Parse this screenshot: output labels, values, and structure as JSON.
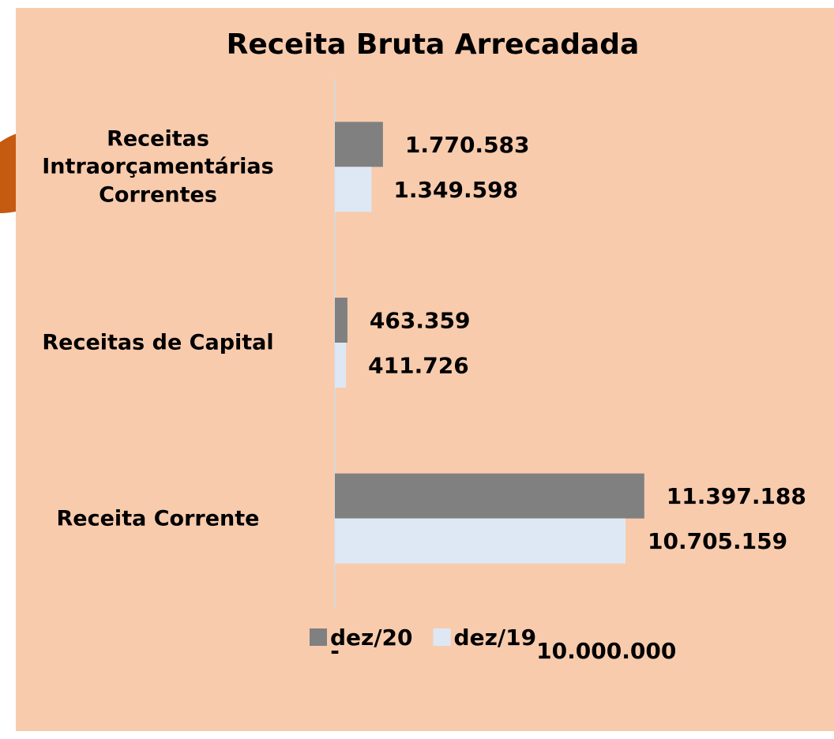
{
  "chart_data": {
    "type": "bar",
    "orientation": "horizontal",
    "title": "Receita Bruta Arrecadada",
    "categories": [
      "Receitas Intraorçamentárias Correntes",
      "Receitas de Capital",
      "Receita Corrente"
    ],
    "series": [
      {
        "name": "dez/20",
        "color": "#808080",
        "values": [
          1770583,
          463359,
          11397188
        ],
        "value_labels": [
          "1.770.583",
          "463.359",
          "11.397.188"
        ]
      },
      {
        "name": "dez/19",
        "color": "#dee8f4",
        "values": [
          1349598,
          411726,
          10705159
        ],
        "value_labels": [
          "1.349.598",
          "411.726",
          "10.705.159"
        ]
      }
    ],
    "xlim": [
      0,
      16000000
    ],
    "xticks": [
      {
        "value": 0,
        "label": "-"
      },
      {
        "value": 10000000,
        "label": "10.000.000"
      }
    ],
    "legend": "bottom"
  }
}
